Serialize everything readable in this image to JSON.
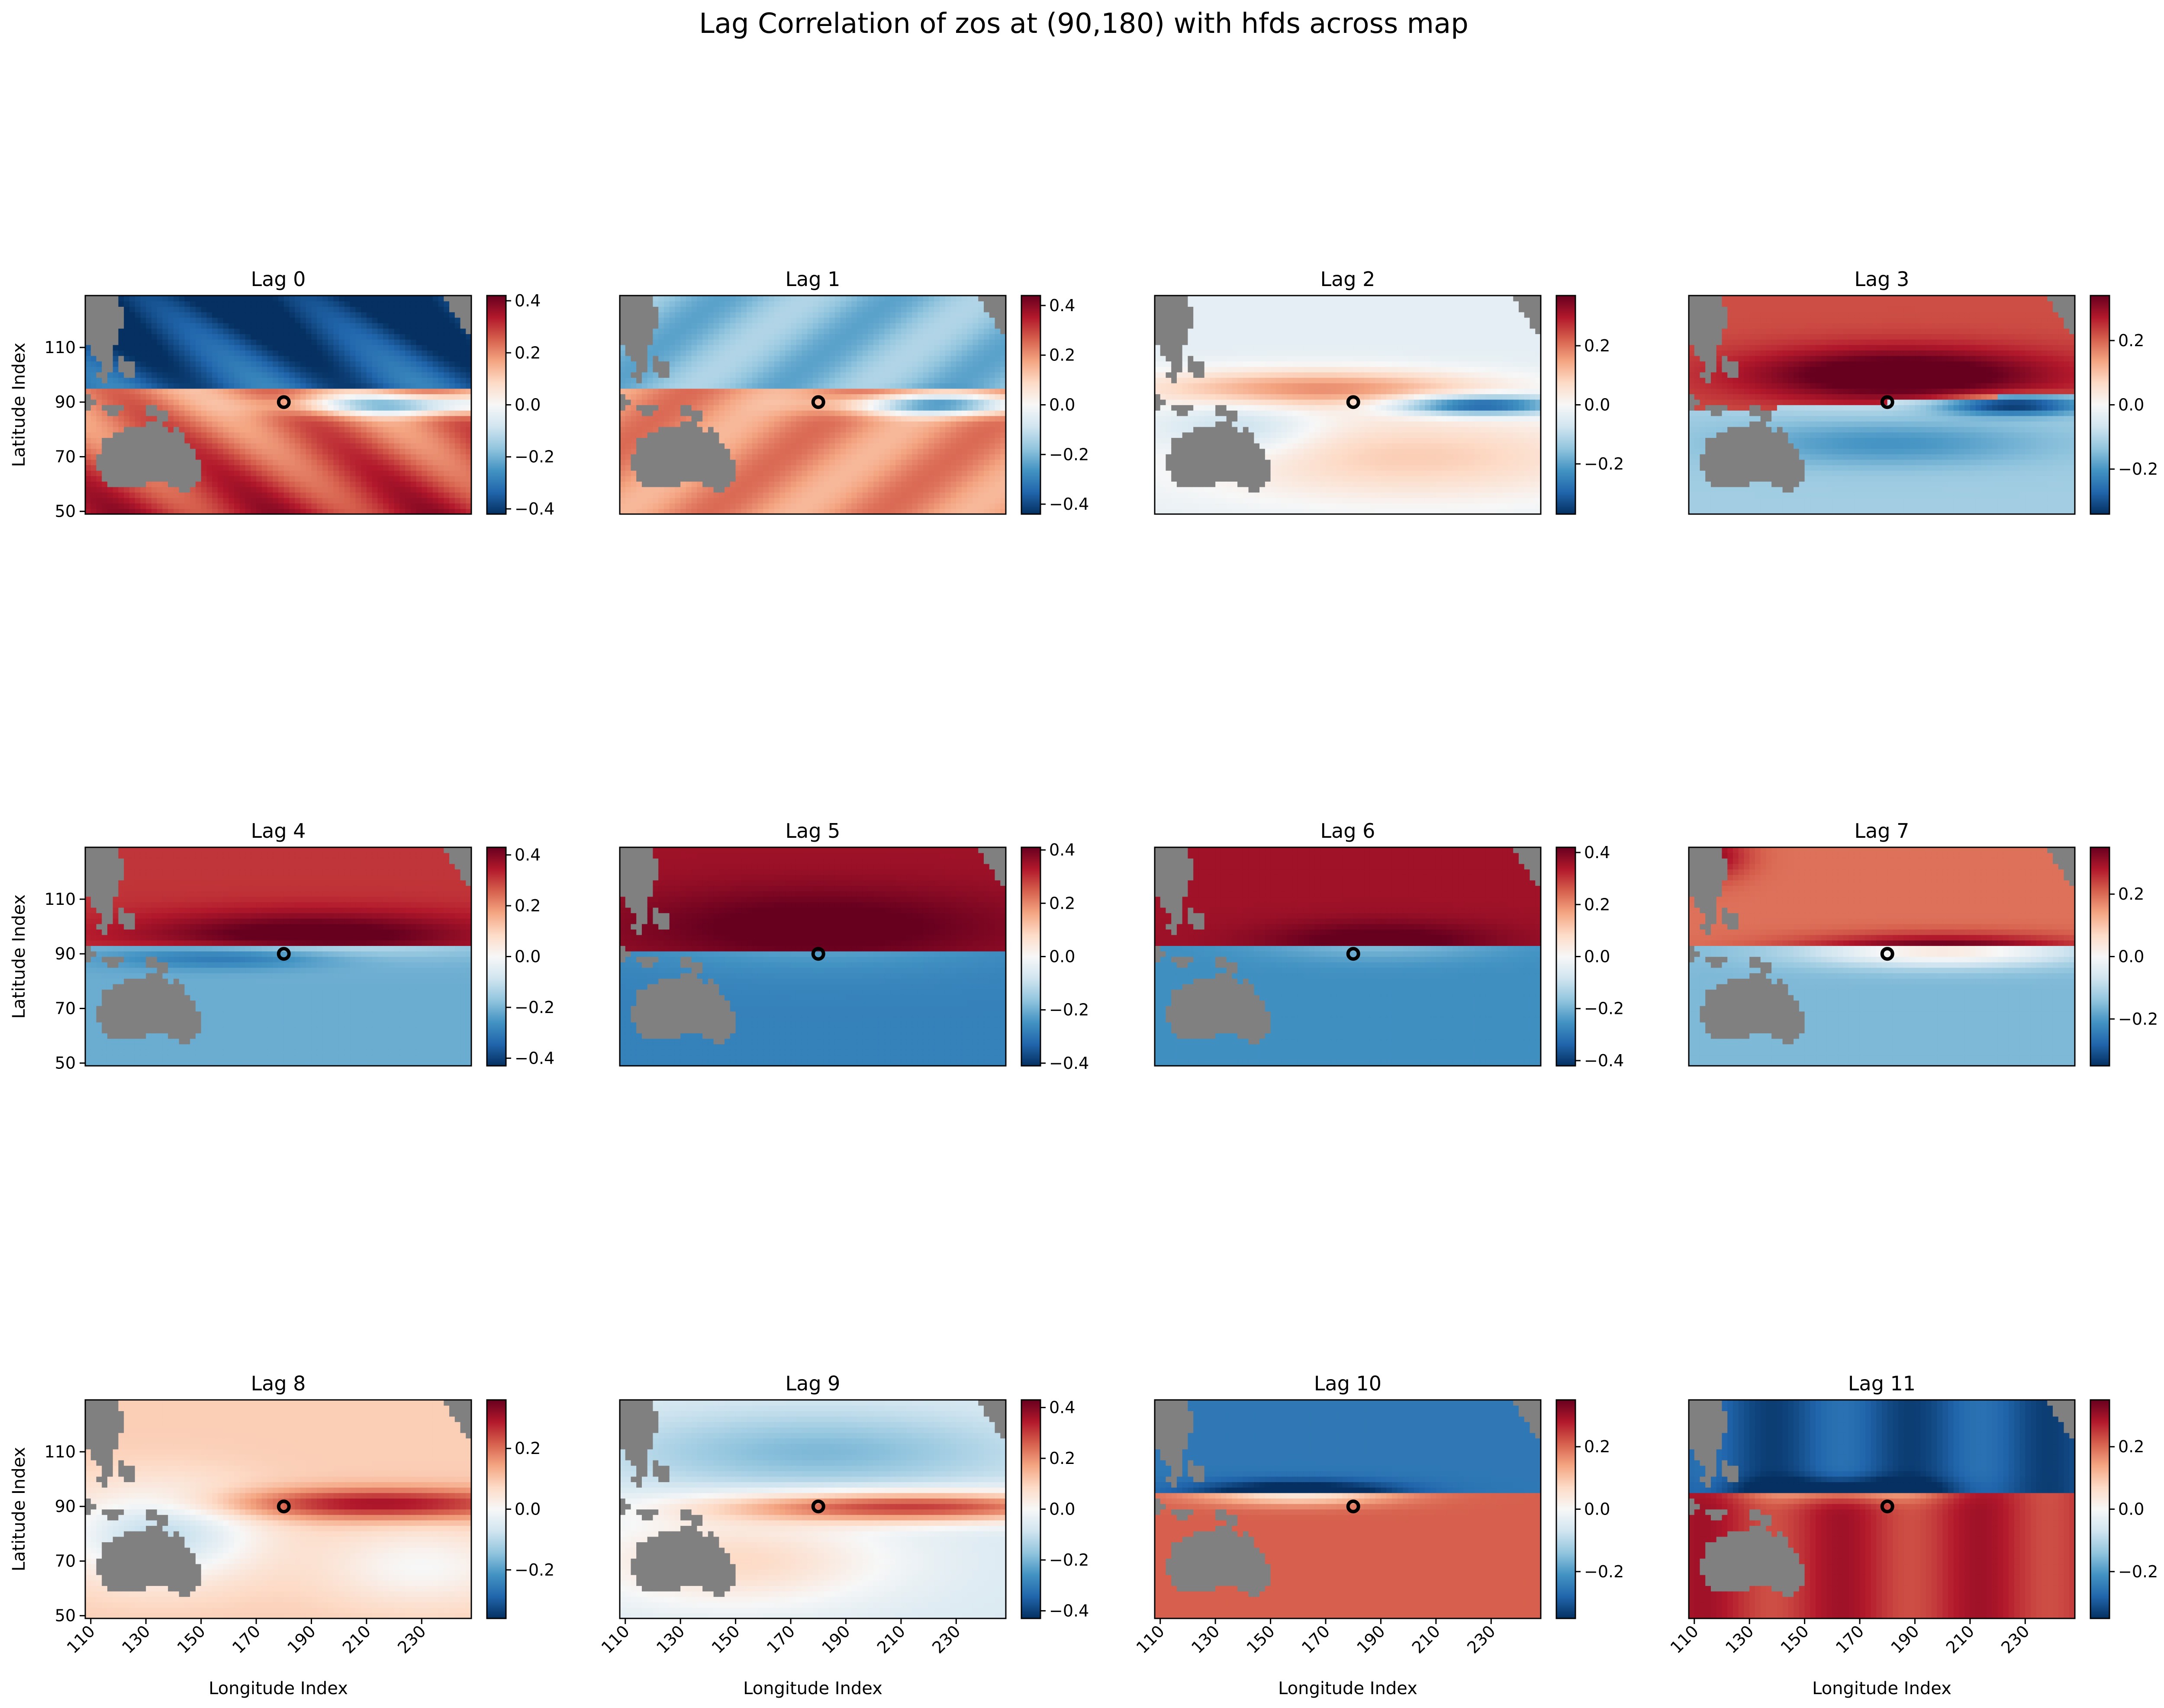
{
  "chart_data": {
    "type": "heatmap",
    "title": "Lag Correlation of zos at (90,180) with hfds across map",
    "xlabel": "Longitude Index",
    "ylabel": "Latitude Index",
    "x_range": [
      108,
      248
    ],
    "y_range": [
      49,
      129
    ],
    "x_ticks": [
      "110",
      "130",
      "150",
      "170",
      "190",
      "210",
      "230"
    ],
    "y_ticks": [
      "50",
      "70",
      "90",
      "110"
    ],
    "marker": {
      "lon": 180,
      "lat": 90
    },
    "colormap": "RdBu_r",
    "colors": {
      "land": "#808080",
      "low": "#053061",
      "mid": "#f7f7f7",
      "high": "#67001f"
    },
    "panels": [
      {
        "title": "Lag 0",
        "vmax": 0.42,
        "cb_ticks": [
          "0.4",
          "0.2",
          "0.0",
          "−0.2",
          "−0.4"
        ]
      },
      {
        "title": "Lag 1",
        "vmax": 0.44,
        "cb_ticks": [
          "0.4",
          "0.2",
          "0.0",
          "−0.2",
          "−0.4"
        ]
      },
      {
        "title": "Lag 2",
        "vmax": 0.37,
        "cb_ticks": [
          "0.2",
          "0.0",
          "−0.2"
        ]
      },
      {
        "title": "Lag 3",
        "vmax": 0.34,
        "cb_ticks": [
          "0.2",
          "0.0",
          "−0.2"
        ]
      },
      {
        "title": "Lag 4",
        "vmax": 0.43,
        "cb_ticks": [
          "0.4",
          "0.2",
          "0.0",
          "−0.2",
          "−0.4"
        ]
      },
      {
        "title": "Lag 5",
        "vmax": 0.41,
        "cb_ticks": [
          "0.4",
          "0.2",
          "0.0",
          "−0.2",
          "−0.4"
        ]
      },
      {
        "title": "Lag 6",
        "vmax": 0.42,
        "cb_ticks": [
          "0.4",
          "0.2",
          "0.0",
          "−0.2",
          "−0.4"
        ]
      },
      {
        "title": "Lag 7",
        "vmax": 0.35,
        "cb_ticks": [
          "0.2",
          "0.0",
          "−0.2"
        ]
      },
      {
        "title": "Lag 8",
        "vmax": 0.36,
        "cb_ticks": [
          "0.2",
          "0.0",
          "−0.2"
        ]
      },
      {
        "title": "Lag 9",
        "vmax": 0.43,
        "cb_ticks": [
          "0.4",
          "0.2",
          "0.0",
          "−0.2",
          "−0.4"
        ]
      },
      {
        "title": "Lag 10",
        "vmax": 0.35,
        "cb_ticks": [
          "0.2",
          "0.0",
          "−0.2"
        ]
      },
      {
        "title": "Lag 11",
        "vmax": 0.35,
        "cb_ticks": [
          "0.2",
          "0.0",
          "−0.2"
        ]
      }
    ]
  }
}
